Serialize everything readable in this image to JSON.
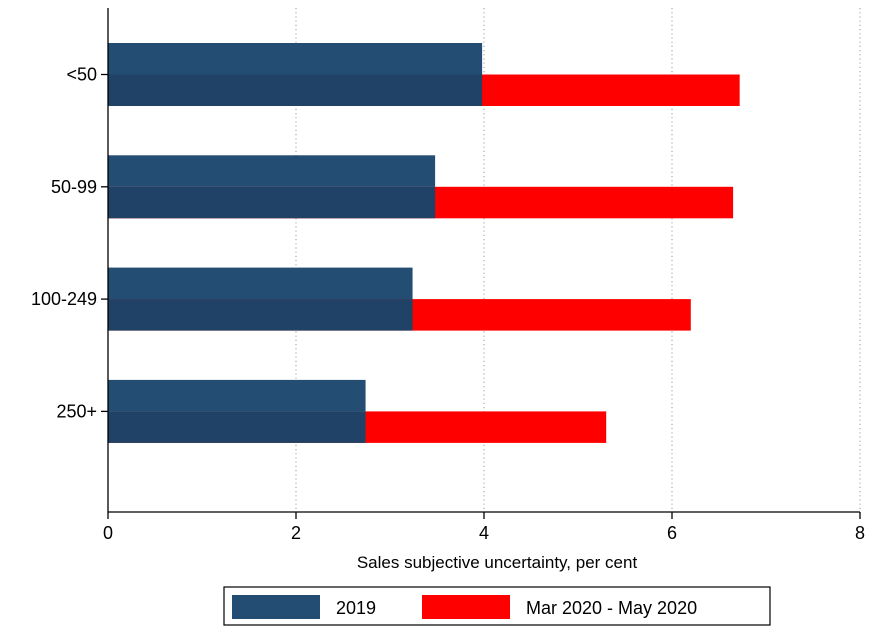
{
  "chart_data": {
    "type": "bar",
    "orientation": "horizontal",
    "categories": [
      "<50",
      "50-99",
      "100-249",
      "250+"
    ],
    "series": [
      {
        "name": "2019",
        "values": [
          3.98,
          3.48,
          3.24,
          2.74
        ],
        "color": "#244d74"
      },
      {
        "name": "Mar 2020 - May 2020",
        "values": [
          6.72,
          6.65,
          6.2,
          5.3
        ],
        "color": "#ff0000"
      }
    ],
    "xlabel": "Sales subjective uncertainty, per cent",
    "ylabel": "",
    "xlim": [
      0,
      8
    ],
    "xticks": [
      "0",
      "2",
      "4",
      "6",
      "8"
    ],
    "grid": "vertical dotted",
    "legend": "bottom"
  }
}
